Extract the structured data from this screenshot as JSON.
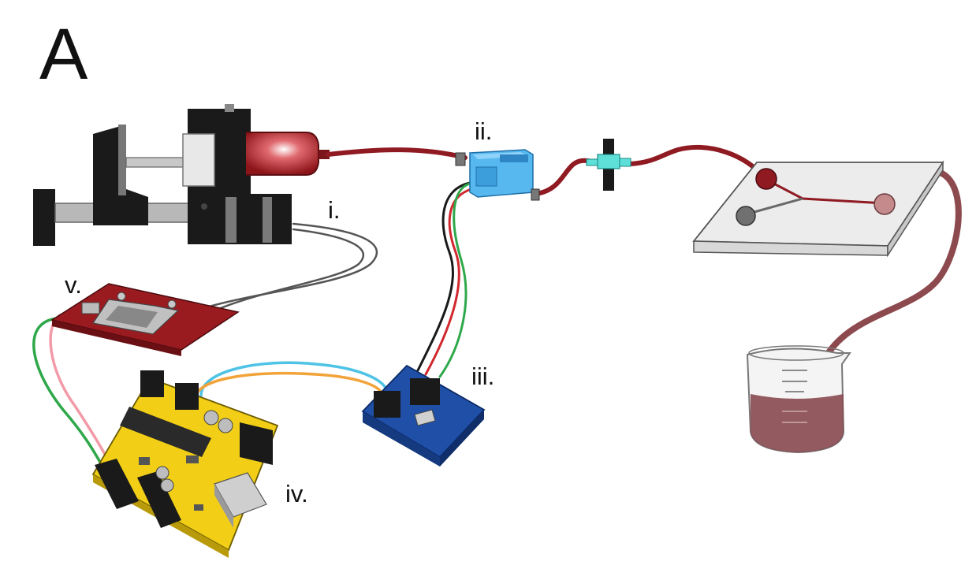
{
  "figure": {
    "panel_letter": "A",
    "labels": {
      "i": "i.",
      "ii": "ii.",
      "iii": "iii.",
      "iv": "iv.",
      "v": "v."
    }
  },
  "colors": {
    "fluid": "#8f1a22",
    "dark_part": "#1a1a1a",
    "red_board": "#9a1b1f",
    "blue_board": "#1f4fa6",
    "sensor_blue": "#57b8f0",
    "arduino_yellow": "#f2cf16",
    "wire_green": "#2ea84a",
    "wire_red": "#d0282e",
    "wire_pink": "#f29aa8",
    "wire_orange": "#f2a33a",
    "wire_cyan": "#4ec3e6",
    "chip_glass": "#ececec",
    "outflow_tube": "#8d4a4e",
    "beaker_liquid": "#8a4c52"
  },
  "icons": [
    "syringe-pump-icon",
    "flow-sensor-icon",
    "valve-icon",
    "microfluidic-chip-icon",
    "beaker-icon",
    "sensor-board-icon",
    "arduino-board-icon",
    "motor-driver-board-icon"
  ]
}
